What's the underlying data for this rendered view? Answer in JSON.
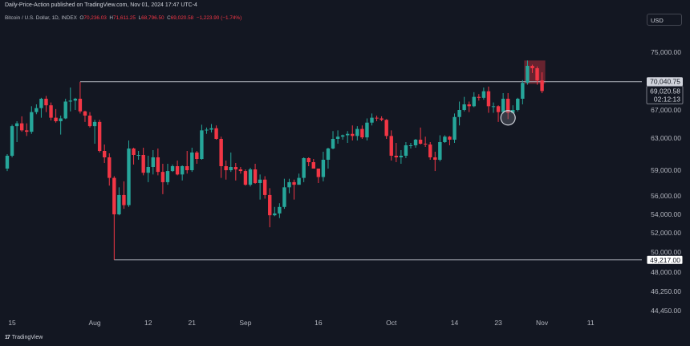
{
  "header": {
    "publisher": "Daily-Price-Action published on TradingView.com, Nov 01, 2024 17:47 UTC-4",
    "symbol": "Bitcoin / U.S. Dollar, 1D, INDEX",
    "o_label": "O",
    "o_value": "70,236.03",
    "h_label": "H",
    "h_value": "71,611.25",
    "l_label": "L",
    "l_value": "68,796.50",
    "c_label": "C",
    "c_value": "69,020.58",
    "change": "−1,223.90 (−1.74%)",
    "currency_button": "USD"
  },
  "footer": {
    "brand_logo": "17",
    "brand_name": "TradingView"
  },
  "colors": {
    "background": "#131722",
    "up": "#26a69a",
    "down": "#f23645",
    "grid_text": "#b2b5be",
    "level_line": "#b2b5be",
    "highlight": "#f23645"
  },
  "chart_data": {
    "type": "candlestick",
    "x_start": "2024-07-14",
    "x_end": "2024-11-14",
    "y_ticks": [
      75000,
      70000,
      67000,
      63000,
      59000,
      56000,
      54000,
      52000,
      50000,
      48000,
      46250,
      44450
    ],
    "y_tick_labels": [
      "75,000.00",
      "70,000.00",
      "67,000.00",
      "63,000.00",
      "59,000.00",
      "56,000.00",
      "54,000.00",
      "52,000.00",
      "50,000.00",
      "48,000.00",
      "46,250.00",
      "44,450.00"
    ],
    "x_ticks": [
      {
        "label": "15",
        "date": "2024-07-15"
      },
      {
        "label": "Aug",
        "date": "2024-08-01"
      },
      {
        "label": "12",
        "date": "2024-08-12"
      },
      {
        "label": "21",
        "date": "2024-08-21"
      },
      {
        "label": "Sep",
        "date": "2024-09-01"
      },
      {
        "label": "16",
        "date": "2024-09-16"
      },
      {
        "label": "Oct",
        "date": "2024-10-01"
      },
      {
        "label": "14",
        "date": "2024-10-14"
      },
      {
        "label": "23",
        "date": "2024-10-23"
      },
      {
        "label": "Nov",
        "date": "2024-11-01"
      },
      {
        "label": "11",
        "date": "2024-11-11"
      }
    ],
    "levels": [
      {
        "value": 70040.75,
        "label": "70,040.75",
        "from": "2024-07-29"
      },
      {
        "value": 49217.0,
        "label": "49,217.00",
        "from": "2024-08-05"
      }
    ],
    "last_price": {
      "value": 69020.58,
      "label": "69,020.58",
      "countdown": "02:12:13"
    },
    "highlight_box": {
      "from": "2024-10-29",
      "to": "2024-11-01",
      "low": 69800,
      "high": 73600
    },
    "circle_marker": {
      "date": "2024-10-25",
      "value": 66000
    },
    "candles": [
      {
        "d": "2024-07-14",
        "o": 59200,
        "h": 61000,
        "l": 58900,
        "c": 60800
      },
      {
        "d": "2024-07-15",
        "o": 60800,
        "h": 64900,
        "l": 60600,
        "c": 64700
      },
      {
        "d": "2024-07-16",
        "o": 64700,
        "h": 65400,
        "l": 62500,
        "c": 65100
      },
      {
        "d": "2024-07-17",
        "o": 65100,
        "h": 66100,
        "l": 63900,
        "c": 64100
      },
      {
        "d": "2024-07-18",
        "o": 64100,
        "h": 65100,
        "l": 63300,
        "c": 63900
      },
      {
        "d": "2024-07-19",
        "o": 63900,
        "h": 67400,
        "l": 63600,
        "c": 66700
      },
      {
        "d": "2024-07-20",
        "o": 66700,
        "h": 67600,
        "l": 66400,
        "c": 67200
      },
      {
        "d": "2024-07-21",
        "o": 67200,
        "h": 68300,
        "l": 65900,
        "c": 68200
      },
      {
        "d": "2024-07-22",
        "o": 68200,
        "h": 68500,
        "l": 66700,
        "c": 67500
      },
      {
        "d": "2024-07-23",
        "o": 67500,
        "h": 67800,
        "l": 65500,
        "c": 65900
      },
      {
        "d": "2024-07-24",
        "o": 65900,
        "h": 67100,
        "l": 65200,
        "c": 65400
      },
      {
        "d": "2024-07-25",
        "o": 65400,
        "h": 66200,
        "l": 63500,
        "c": 65800
      },
      {
        "d": "2024-07-26",
        "o": 65800,
        "h": 68200,
        "l": 65700,
        "c": 67900
      },
      {
        "d": "2024-07-27",
        "o": 67900,
        "h": 69400,
        "l": 66800,
        "c": 68000
      },
      {
        "d": "2024-07-28",
        "o": 68000,
        "h": 68300,
        "l": 67000,
        "c": 68200
      },
      {
        "d": "2024-07-29",
        "o": 68200,
        "h": 70000,
        "l": 66500,
        "c": 66800
      },
      {
        "d": "2024-07-30",
        "o": 66800,
        "h": 66900,
        "l": 65300,
        "c": 66200
      },
      {
        "d": "2024-07-31",
        "o": 66200,
        "h": 66700,
        "l": 64500,
        "c": 64700
      },
      {
        "d": "2024-08-01",
        "o": 64700,
        "h": 65600,
        "l": 62300,
        "c": 65300
      },
      {
        "d": "2024-08-02",
        "o": 65300,
        "h": 65600,
        "l": 61200,
        "c": 61400
      },
      {
        "d": "2024-08-03",
        "o": 61400,
        "h": 62200,
        "l": 59900,
        "c": 60600
      },
      {
        "d": "2024-08-04",
        "o": 60600,
        "h": 61100,
        "l": 57200,
        "c": 58100
      },
      {
        "d": "2024-08-05",
        "o": 58100,
        "h": 58300,
        "l": 49217,
        "c": 54000
      },
      {
        "d": "2024-08-06",
        "o": 54000,
        "h": 57000,
        "l": 53900,
        "c": 56100
      },
      {
        "d": "2024-08-07",
        "o": 56100,
        "h": 57700,
        "l": 54600,
        "c": 55000
      },
      {
        "d": "2024-08-08",
        "o": 55000,
        "h": 62700,
        "l": 54800,
        "c": 61700
      },
      {
        "d": "2024-08-09",
        "o": 61700,
        "h": 61800,
        "l": 59700,
        "c": 60900
      },
      {
        "d": "2024-08-10",
        "o": 60900,
        "h": 61400,
        "l": 60300,
        "c": 60900
      },
      {
        "d": "2024-08-11",
        "o": 60900,
        "h": 61800,
        "l": 58400,
        "c": 58700
      },
      {
        "d": "2024-08-12",
        "o": 58700,
        "h": 60800,
        "l": 57600,
        "c": 59400
      },
      {
        "d": "2024-08-13",
        "o": 59400,
        "h": 61500,
        "l": 58500,
        "c": 60600
      },
      {
        "d": "2024-08-14",
        "o": 60600,
        "h": 61700,
        "l": 58400,
        "c": 58800
      },
      {
        "d": "2024-08-15",
        "o": 58800,
        "h": 59800,
        "l": 56200,
        "c": 57600
      },
      {
        "d": "2024-08-16",
        "o": 57600,
        "h": 59800,
        "l": 57300,
        "c": 58900
      },
      {
        "d": "2024-08-17",
        "o": 58900,
        "h": 59700,
        "l": 58800,
        "c": 59500
      },
      {
        "d": "2024-08-18",
        "o": 59500,
        "h": 60200,
        "l": 58400,
        "c": 58500
      },
      {
        "d": "2024-08-19",
        "o": 58500,
        "h": 59600,
        "l": 57800,
        "c": 59500
      },
      {
        "d": "2024-08-20",
        "o": 59500,
        "h": 61400,
        "l": 58600,
        "c": 59000
      },
      {
        "d": "2024-08-21",
        "o": 59000,
        "h": 61800,
        "l": 58800,
        "c": 61200
      },
      {
        "d": "2024-08-22",
        "o": 61200,
        "h": 61400,
        "l": 59800,
        "c": 60400
      },
      {
        "d": "2024-08-23",
        "o": 60400,
        "h": 64900,
        "l": 60300,
        "c": 64100
      },
      {
        "d": "2024-08-24",
        "o": 64100,
        "h": 64500,
        "l": 63600,
        "c": 64200
      },
      {
        "d": "2024-08-25",
        "o": 64200,
        "h": 65000,
        "l": 63800,
        "c": 64400
      },
      {
        "d": "2024-08-26",
        "o": 64400,
        "h": 64800,
        "l": 62800,
        "c": 62900
      },
      {
        "d": "2024-08-27",
        "o": 62900,
        "h": 63200,
        "l": 58100,
        "c": 59500
      },
      {
        "d": "2024-08-28",
        "o": 59500,
        "h": 60200,
        "l": 57900,
        "c": 59000
      },
      {
        "d": "2024-08-29",
        "o": 59000,
        "h": 61200,
        "l": 58800,
        "c": 59400
      },
      {
        "d": "2024-08-30",
        "o": 59400,
        "h": 59900,
        "l": 57800,
        "c": 59100
      },
      {
        "d": "2024-08-31",
        "o": 59100,
        "h": 59400,
        "l": 58600,
        "c": 58900
      },
      {
        "d": "2024-09-01",
        "o": 58900,
        "h": 59100,
        "l": 57200,
        "c": 57300
      },
      {
        "d": "2024-09-02",
        "o": 57300,
        "h": 59300,
        "l": 57100,
        "c": 59100
      },
      {
        "d": "2024-09-03",
        "o": 59100,
        "h": 59800,
        "l": 57400,
        "c": 57500
      },
      {
        "d": "2024-09-04",
        "o": 57500,
        "h": 58500,
        "l": 55600,
        "c": 57900
      },
      {
        "d": "2024-09-05",
        "o": 57900,
        "h": 58300,
        "l": 55700,
        "c": 56100
      },
      {
        "d": "2024-09-06",
        "o": 56100,
        "h": 56900,
        "l": 52600,
        "c": 53900
      },
      {
        "d": "2024-09-07",
        "o": 53900,
        "h": 54800,
        "l": 53800,
        "c": 54100
      },
      {
        "d": "2024-09-08",
        "o": 54100,
        "h": 55200,
        "l": 53600,
        "c": 54800
      },
      {
        "d": "2024-09-09",
        "o": 54800,
        "h": 58000,
        "l": 54600,
        "c": 57000
      },
      {
        "d": "2024-09-10",
        "o": 57000,
        "h": 58000,
        "l": 56300,
        "c": 57600
      },
      {
        "d": "2024-09-11",
        "o": 57600,
        "h": 57900,
        "l": 55600,
        "c": 57300
      },
      {
        "d": "2024-09-12",
        "o": 57300,
        "h": 58600,
        "l": 57300,
        "c": 58100
      },
      {
        "d": "2024-09-13",
        "o": 58100,
        "h": 60600,
        "l": 57600,
        "c": 60500
      },
      {
        "d": "2024-09-14",
        "o": 60500,
        "h": 60600,
        "l": 59500,
        "c": 60000
      },
      {
        "d": "2024-09-15",
        "o": 60000,
        "h": 60400,
        "l": 59400,
        "c": 59200
      },
      {
        "d": "2024-09-16",
        "o": 59200,
        "h": 59200,
        "l": 57500,
        "c": 58200
      },
      {
        "d": "2024-09-17",
        "o": 58200,
        "h": 61300,
        "l": 57700,
        "c": 60300
      },
      {
        "d": "2024-09-18",
        "o": 60300,
        "h": 61800,
        "l": 59200,
        "c": 61700
      },
      {
        "d": "2024-09-19",
        "o": 61700,
        "h": 64000,
        "l": 61600,
        "c": 62900
      },
      {
        "d": "2024-09-20",
        "o": 62900,
        "h": 64100,
        "l": 62300,
        "c": 63200
      },
      {
        "d": "2024-09-21",
        "o": 63200,
        "h": 63500,
        "l": 62800,
        "c": 63400
      },
      {
        "d": "2024-09-22",
        "o": 63400,
        "h": 64000,
        "l": 62400,
        "c": 63600
      },
      {
        "d": "2024-09-23",
        "o": 63600,
        "h": 64800,
        "l": 62700,
        "c": 63300
      },
      {
        "d": "2024-09-24",
        "o": 63300,
        "h": 64700,
        "l": 62700,
        "c": 64300
      },
      {
        "d": "2024-09-25",
        "o": 64300,
        "h": 64800,
        "l": 62900,
        "c": 63100
      },
      {
        "d": "2024-09-26",
        "o": 63100,
        "h": 65800,
        "l": 62700,
        "c": 65200
      },
      {
        "d": "2024-09-27",
        "o": 65200,
        "h": 66500,
        "l": 64800,
        "c": 65900
      },
      {
        "d": "2024-09-28",
        "o": 65900,
        "h": 66200,
        "l": 65400,
        "c": 65800
      },
      {
        "d": "2024-09-29",
        "o": 65800,
        "h": 66100,
        "l": 65400,
        "c": 65600
      },
      {
        "d": "2024-09-30",
        "o": 65600,
        "h": 65700,
        "l": 62900,
        "c": 63300
      },
      {
        "d": "2024-10-01",
        "o": 63300,
        "h": 64100,
        "l": 60200,
        "c": 60800
      },
      {
        "d": "2024-10-02",
        "o": 60800,
        "h": 62400,
        "l": 60000,
        "c": 60600
      },
      {
        "d": "2024-10-03",
        "o": 60600,
        "h": 61500,
        "l": 59800,
        "c": 60800
      },
      {
        "d": "2024-10-04",
        "o": 60800,
        "h": 62500,
        "l": 60500,
        "c": 62100
      },
      {
        "d": "2024-10-05",
        "o": 62100,
        "h": 62400,
        "l": 61700,
        "c": 62100
      },
      {
        "d": "2024-10-06",
        "o": 62100,
        "h": 62900,
        "l": 61800,
        "c": 62800
      },
      {
        "d": "2024-10-07",
        "o": 62800,
        "h": 64500,
        "l": 62200,
        "c": 62300
      },
      {
        "d": "2024-10-08",
        "o": 62300,
        "h": 63200,
        "l": 61900,
        "c": 62200
      },
      {
        "d": "2024-10-09",
        "o": 62200,
        "h": 62500,
        "l": 60300,
        "c": 60600
      },
      {
        "d": "2024-10-10",
        "o": 60600,
        "h": 61300,
        "l": 58900,
        "c": 60300
      },
      {
        "d": "2024-10-11",
        "o": 60300,
        "h": 63400,
        "l": 60100,
        "c": 62500
      },
      {
        "d": "2024-10-12",
        "o": 62500,
        "h": 63400,
        "l": 62400,
        "c": 63200
      },
      {
        "d": "2024-10-13",
        "o": 63200,
        "h": 63300,
        "l": 62100,
        "c": 62800
      },
      {
        "d": "2024-10-14",
        "o": 62800,
        "h": 66500,
        "l": 62400,
        "c": 66000
      },
      {
        "d": "2024-10-15",
        "o": 66000,
        "h": 67900,
        "l": 64800,
        "c": 67000
      },
      {
        "d": "2024-10-16",
        "o": 67000,
        "h": 68400,
        "l": 66800,
        "c": 67600
      },
      {
        "d": "2024-10-17",
        "o": 67600,
        "h": 67900,
        "l": 66700,
        "c": 67400
      },
      {
        "d": "2024-10-18",
        "o": 67400,
        "h": 68900,
        "l": 67300,
        "c": 68400
      },
      {
        "d": "2024-10-19",
        "o": 68400,
        "h": 68700,
        "l": 68000,
        "c": 68300
      },
      {
        "d": "2024-10-20",
        "o": 68300,
        "h": 69400,
        "l": 68100,
        "c": 69000
      },
      {
        "d": "2024-10-21",
        "o": 69000,
        "h": 69500,
        "l": 66600,
        "c": 67400
      },
      {
        "d": "2024-10-22",
        "o": 67400,
        "h": 67800,
        "l": 66600,
        "c": 67400
      },
      {
        "d": "2024-10-23",
        "o": 67400,
        "h": 67500,
        "l": 65300,
        "c": 66700
      },
      {
        "d": "2024-10-24",
        "o": 66700,
        "h": 68800,
        "l": 66500,
        "c": 68200
      },
      {
        "d": "2024-10-25",
        "o": 68200,
        "h": 68800,
        "l": 65700,
        "c": 66600
      },
      {
        "d": "2024-10-26",
        "o": 66600,
        "h": 67500,
        "l": 66500,
        "c": 67000
      },
      {
        "d": "2024-10-27",
        "o": 67000,
        "h": 68300,
        "l": 66800,
        "c": 68200
      },
      {
        "d": "2024-10-28",
        "o": 68200,
        "h": 70300,
        "l": 67600,
        "c": 69900
      },
      {
        "d": "2024-10-29",
        "o": 69900,
        "h": 73600,
        "l": 69700,
        "c": 72700
      },
      {
        "d": "2024-10-30",
        "o": 72700,
        "h": 72900,
        "l": 71500,
        "c": 72300
      },
      {
        "d": "2024-10-31",
        "o": 72300,
        "h": 72600,
        "l": 69700,
        "c": 70236
      },
      {
        "d": "2024-11-01",
        "o": 70236,
        "h": 71611,
        "l": 68797,
        "c": 69021
      }
    ]
  }
}
